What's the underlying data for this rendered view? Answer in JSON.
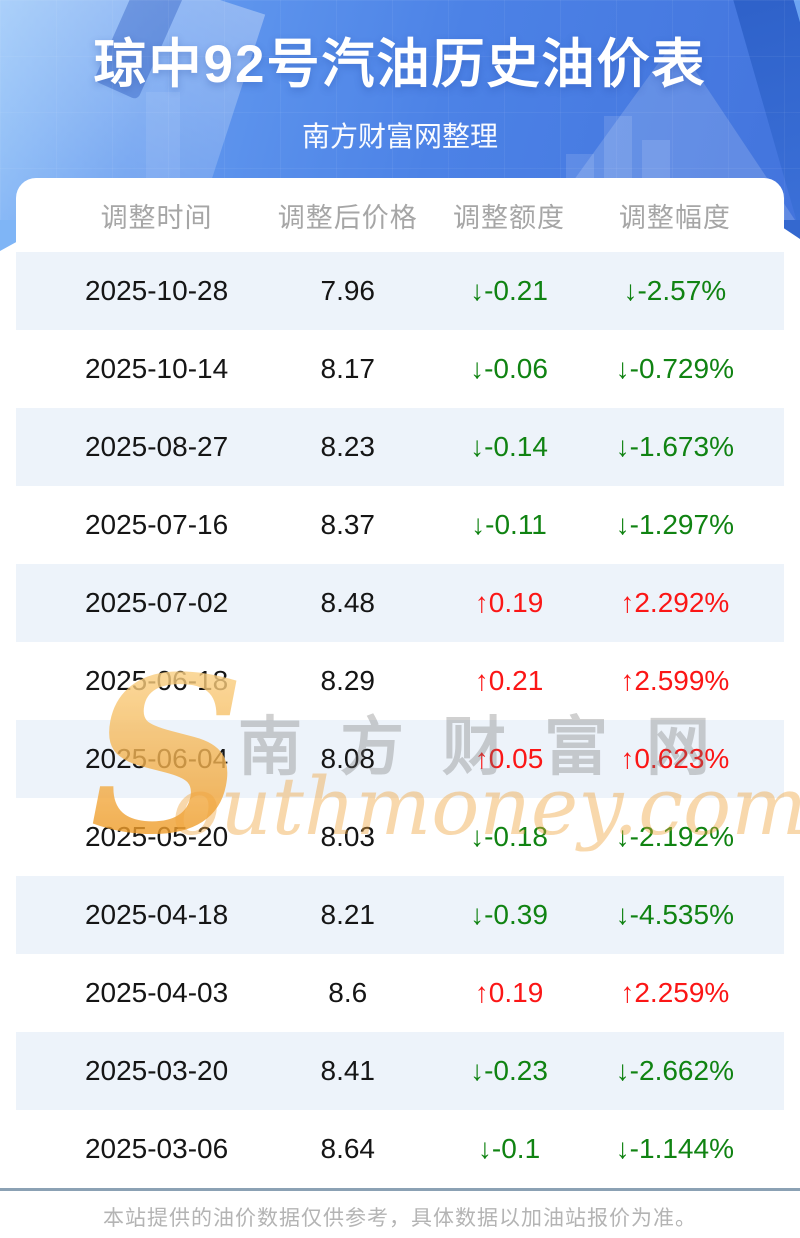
{
  "header": {
    "title": "琼中92号汽油历史油价表",
    "subtitle": "南方财富网整理"
  },
  "table": {
    "columns": [
      {
        "label": "调整时间"
      },
      {
        "label": "调整后价格"
      },
      {
        "label": "调整额度"
      },
      {
        "label": "调整幅度"
      }
    ],
    "rows": [
      {
        "date": "2025-10-28",
        "price": "7.96",
        "change": "↓-0.21",
        "percent": "↓-2.57%",
        "direction": "down"
      },
      {
        "date": "2025-10-14",
        "price": "8.17",
        "change": "↓-0.06",
        "percent": "↓-0.729%",
        "direction": "down"
      },
      {
        "date": "2025-08-27",
        "price": "8.23",
        "change": "↓-0.14",
        "percent": "↓-1.673%",
        "direction": "down"
      },
      {
        "date": "2025-07-16",
        "price": "8.37",
        "change": "↓-0.11",
        "percent": "↓-1.297%",
        "direction": "down"
      },
      {
        "date": "2025-07-02",
        "price": "8.48",
        "change": "↑0.19",
        "percent": "↑2.292%",
        "direction": "up"
      },
      {
        "date": "2025-06-18",
        "price": "8.29",
        "change": "↑0.21",
        "percent": "↑2.599%",
        "direction": "up"
      },
      {
        "date": "2025-06-04",
        "price": "8.08",
        "change": "↑0.05",
        "percent": "↑0.623%",
        "direction": "up"
      },
      {
        "date": "2025-05-20",
        "price": "8.03",
        "change": "↓-0.18",
        "percent": "↓-2.192%",
        "direction": "down"
      },
      {
        "date": "2025-04-18",
        "price": "8.21",
        "change": "↓-0.39",
        "percent": "↓-4.535%",
        "direction": "down"
      },
      {
        "date": "2025-04-03",
        "price": "8.6",
        "change": "↑0.19",
        "percent": "↑2.259%",
        "direction": "up"
      },
      {
        "date": "2025-03-20",
        "price": "8.41",
        "change": "↓-0.23",
        "percent": "↓-2.662%",
        "direction": "down"
      },
      {
        "date": "2025-03-06",
        "price": "8.64",
        "change": "↓-0.1",
        "percent": "↓-1.144%",
        "direction": "down"
      }
    ]
  },
  "watermark": {
    "initial": "S",
    "cn": "南方财富网",
    "en": "outhmoney.com"
  },
  "footer": {
    "disclaimer": "本站提供的油价数据仅供参考，具体数据以加油站报价为准。"
  },
  "colors": {
    "up_red": "#fb1616",
    "down_green": "#108312",
    "stripe_blue": "#edf3fa",
    "banner_blue": "#4c82e6",
    "divider_gray_blue": "#8ba1b4",
    "header_text_gray": "#a6a6a6",
    "watermark_orange": "#f0a43c"
  },
  "chart_data": {
    "type": "table",
    "title": "琼中92号汽油历史油价表",
    "subtitle": "南方财富网整理",
    "columns": [
      "调整时间",
      "调整后价格",
      "调整额度",
      "调整幅度"
    ],
    "rows": [
      [
        "2025-10-28",
        7.96,
        -0.21,
        "-2.57%"
      ],
      [
        "2025-10-14",
        8.17,
        -0.06,
        "-0.729%"
      ],
      [
        "2025-08-27",
        8.23,
        -0.14,
        "-1.673%"
      ],
      [
        "2025-07-16",
        8.37,
        -0.11,
        "-1.297%"
      ],
      [
        "2025-07-02",
        8.48,
        0.19,
        "+2.292%"
      ],
      [
        "2025-06-18",
        8.29,
        0.21,
        "+2.599%"
      ],
      [
        "2025-06-04",
        8.08,
        0.05,
        "+0.623%"
      ],
      [
        "2025-05-20",
        8.03,
        -0.18,
        "-2.192%"
      ],
      [
        "2025-04-18",
        8.21,
        -0.39,
        "-4.535%"
      ],
      [
        "2025-04-03",
        8.6,
        0.19,
        "+2.259%"
      ],
      [
        "2025-03-20",
        8.41,
        -0.23,
        "-2.662%"
      ],
      [
        "2025-03-06",
        8.64,
        -0.1,
        "-1.144%"
      ]
    ],
    "notes": "下降为绿色(↓)，上涨为红色(↑)；隔行浅蓝条纹"
  }
}
